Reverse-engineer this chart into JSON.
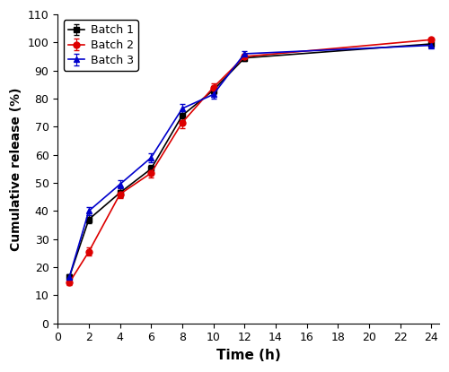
{
  "time": [
    0.75,
    2,
    4,
    6,
    8,
    10,
    12,
    24
  ],
  "batch1": {
    "y": [
      16.5,
      37.0,
      46.5,
      55.0,
      74.0,
      83.0,
      94.5,
      99.5
    ],
    "yerr": [
      1.0,
      1.5,
      1.5,
      1.5,
      1.5,
      1.5,
      1.0,
      0.5
    ],
    "color": "#000000",
    "marker": "s",
    "label": "Batch 1"
  },
  "batch2": {
    "y": [
      14.5,
      25.5,
      46.0,
      53.5,
      71.5,
      84.0,
      95.0,
      101.0
    ],
    "yerr": [
      1.0,
      1.5,
      1.5,
      1.5,
      2.0,
      1.5,
      1.0,
      0.5
    ],
    "color": "#dd0000",
    "marker": "o",
    "label": "Batch 2"
  },
  "batch3": {
    "y": [
      16.5,
      40.0,
      49.5,
      59.0,
      76.5,
      81.5,
      96.0,
      99.0
    ],
    "yerr": [
      1.0,
      1.5,
      1.5,
      1.5,
      1.5,
      1.5,
      1.0,
      0.5
    ],
    "color": "#0000cc",
    "marker": "^",
    "label": "Batch 3"
  },
  "xlabel": "Time (h)",
  "ylabel": "Cumulative release (%)",
  "xlim": [
    0,
    24.5
  ],
  "ylim": [
    0,
    110
  ],
  "xticks": [
    0,
    2,
    4,
    6,
    8,
    10,
    12,
    14,
    16,
    18,
    20,
    22,
    24
  ],
  "yticks": [
    0,
    10,
    20,
    30,
    40,
    50,
    60,
    70,
    80,
    90,
    100,
    110
  ],
  "background_color": "#ffffff",
  "legend_loc": "upper left",
  "markersize": 5,
  "linewidth": 1.2,
  "capsize": 2,
  "elinewidth": 0.8
}
